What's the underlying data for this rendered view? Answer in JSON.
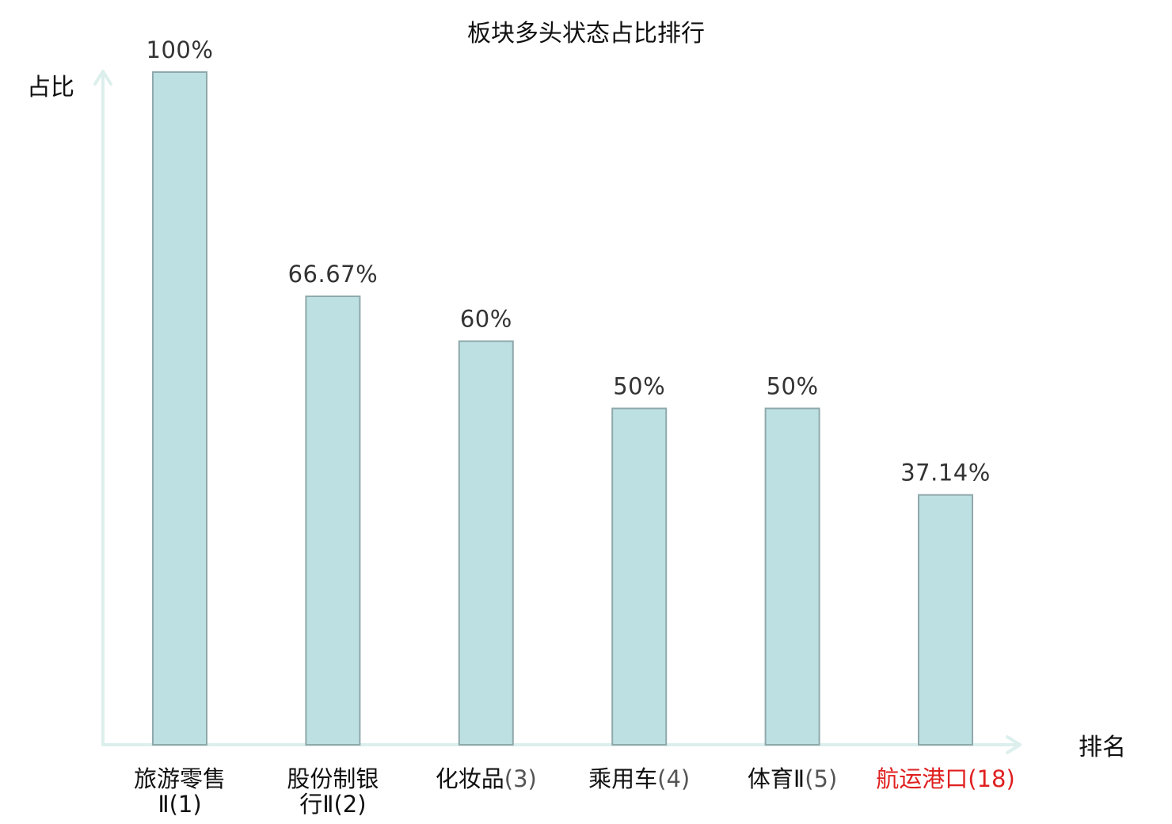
{
  "chart_data": {
    "type": "bar",
    "title": "板块多头状态占比排行",
    "ylabel": "占比",
    "xlabel": "排名",
    "ylim": [
      0,
      100
    ],
    "grid": false,
    "legend": "none",
    "categories": [
      {
        "label": "旅游零售Ⅱ(1)",
        "lines": [
          [
            "旅游零售",
            ""
          ],
          [
            "Ⅱ(1)",
            ""
          ]
        ],
        "highlight": false
      },
      {
        "label": "股份制银行Ⅱ(2)",
        "lines": [
          [
            "股份制银",
            ""
          ],
          [
            "行Ⅱ(2)",
            ""
          ]
        ],
        "highlight": false
      },
      {
        "label": "化妆品(3)",
        "lines": [
          [
            "化妆品",
            "(3)"
          ]
        ],
        "highlight": false
      },
      {
        "label": "乘用车(4)",
        "lines": [
          [
            "乘用车",
            "(4)"
          ]
        ],
        "highlight": false
      },
      {
        "label": "体育Ⅱ(5)",
        "lines": [
          [
            "体育Ⅱ",
            "(5)"
          ]
        ],
        "highlight": false
      },
      {
        "label": "航运港口(18)",
        "lines": [
          [
            "航运港口",
            "(18)"
          ]
        ],
        "highlight": true
      }
    ],
    "values": [
      100,
      66.67,
      60,
      50,
      50,
      37.14
    ],
    "value_labels": [
      "100%",
      "66.67%",
      "60%",
      "50%",
      "50%",
      "37.14%"
    ]
  },
  "colors": {
    "bar_fill": "#bde0e3",
    "bar_stroke": "#8fa9ab",
    "axis": "#dcefec",
    "highlight": "#e02020"
  }
}
